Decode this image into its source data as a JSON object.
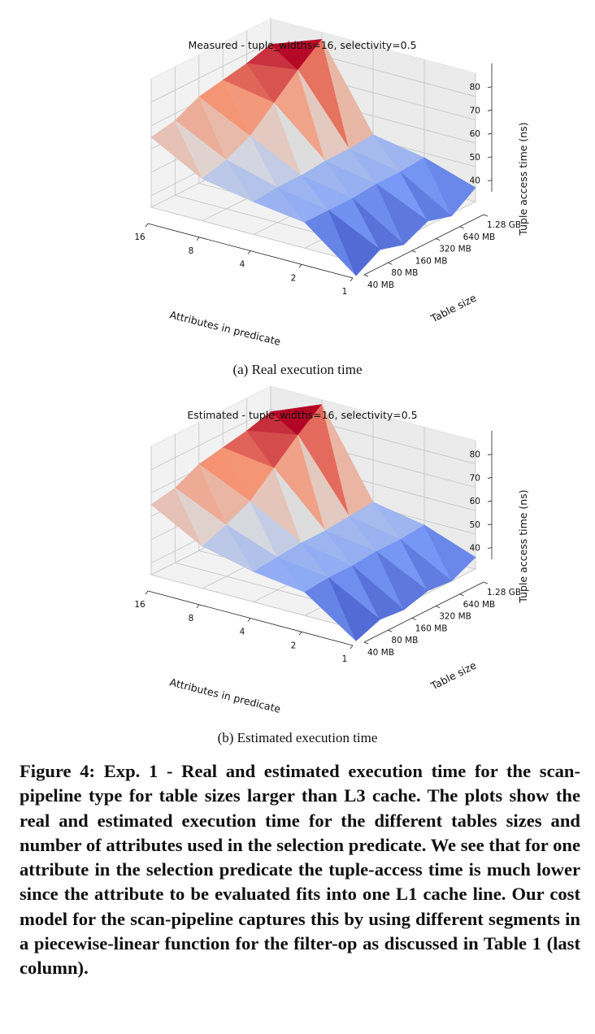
{
  "figure": {
    "subfigures": [
      {
        "id": "a",
        "title": "Measured - tuple_widths=16, selectivity=0.5",
        "caption": "(a)  Real execution time"
      },
      {
        "id": "b",
        "title": "Estimated - tuple_widths=16, selectivity=0.5",
        "caption": "(b)  Estimated execution time"
      }
    ],
    "caption": "Figure 4: Exp. 1 - Real and estimated execution time for the scan-pipeline type for table sizes larger than L3 cache. The plots show the real and estimated execution time for the different tables sizes and number of attributes used in the selection predicate. We see that for one attribute in the selection predicate the tuple-access time is much lower since the attribute to be evaluated fits into one L1 cache line. Our cost model for the scan-pipeline captures this by using different segments in a piecewise-linear function for the filter-op as discussed in Table 1 (last column)."
  },
  "chart_data": [
    {
      "type": "surface",
      "title": "Measured - tuple_widths=16, selectivity=0.5",
      "xlabel": "Attributes in predicate",
      "ylabel": "Table size",
      "zlabel": "Tuple access time (ns)",
      "x_ticks": [
        "1",
        "2",
        "4",
        "8",
        "16"
      ],
      "y_ticks": [
        "40 MB",
        "80 MB",
        "160 MB",
        "320 MB",
        "640 MB",
        "1.28 GB"
      ],
      "z_ticks": [
        40,
        50,
        60,
        70,
        80
      ],
      "zlim": [
        35,
        90
      ],
      "colormap": "coolwarm",
      "x": [
        1,
        2,
        4,
        8,
        16
      ],
      "y": [
        "40 MB",
        "80 MB",
        "160 MB",
        "320 MB",
        "640 MB",
        "1.28 GB"
      ],
      "z": [
        [
          29,
          35,
          32,
          37,
          34,
          41
        ],
        [
          46,
          46,
          46,
          47,
          47,
          48
        ],
        [
          49,
          50,
          50,
          51,
          51,
          52
        ],
        [
          53,
          56,
          61,
          70,
          79,
          87
        ],
        [
          65,
          67,
          72,
          74,
          76,
          79
        ]
      ]
    },
    {
      "type": "surface",
      "title": "Estimated - tuple_widths=16, selectivity=0.5",
      "xlabel": "Attributes in predicate",
      "ylabel": "Table size",
      "zlabel": "Tuple access time (ns)",
      "x_ticks": [
        "1",
        "2",
        "4",
        "8",
        "16"
      ],
      "y_ticks": [
        "40 MB",
        "80 MB",
        "160 MB",
        "320 MB",
        "640 MB",
        "1.28 GB"
      ],
      "z_ticks": [
        40,
        50,
        60,
        70,
        80
      ],
      "zlim": [
        35,
        90
      ],
      "colormap": "coolwarm",
      "x": [
        1,
        2,
        4,
        8,
        16
      ],
      "y": [
        "40 MB",
        "80 MB",
        "160 MB",
        "320 MB",
        "640 MB",
        "1.28 GB"
      ],
      "z": [
        [
          30,
          34,
          33,
          36,
          35,
          40
        ],
        [
          45,
          46,
          46,
          47,
          47,
          48
        ],
        [
          48,
          49,
          50,
          50,
          51,
          52
        ],
        [
          53,
          57,
          62,
          71,
          80,
          88
        ],
        [
          65,
          67,
          72,
          74,
          76,
          79
        ]
      ]
    }
  ]
}
